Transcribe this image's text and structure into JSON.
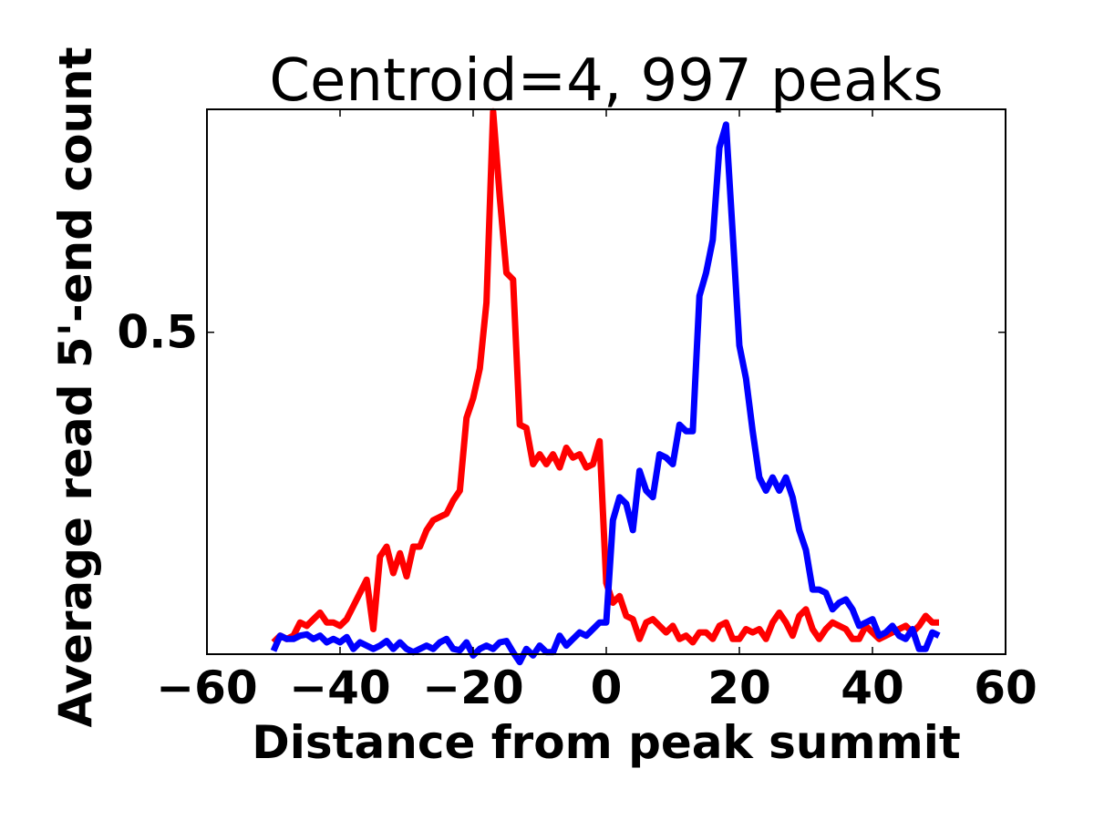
{
  "chart_data": {
    "type": "line",
    "title": "Centroid=4, 997 peaks",
    "xlabel": "Distance from peak summit",
    "ylabel": "Average read 5'-end count",
    "xlim": [
      -60,
      60
    ],
    "ylim": [
      0.012,
      0.838
    ],
    "xticks": [
      -60,
      -40,
      -20,
      0,
      20,
      40,
      60
    ],
    "xtick_labels": [
      "−60",
      "−40",
      "−20",
      "0",
      "20",
      "40",
      "60"
    ],
    "yticks": [
      0.5
    ],
    "ytick_labels": [
      "0.5"
    ],
    "x": [
      -50,
      -49,
      -48,
      -47,
      -46,
      -45,
      -44,
      -43,
      -42,
      -41,
      -40,
      -39,
      -38,
      -37,
      -36,
      -35,
      -34,
      -33,
      -32,
      -31,
      -30,
      -29,
      -28,
      -27,
      -26,
      -25,
      -24,
      -23,
      -22,
      -21,
      -20,
      -19,
      -18,
      -17,
      -16,
      -15,
      -14,
      -13,
      -12,
      -11,
      -10,
      -9,
      -8,
      -7,
      -6,
      -5,
      -4,
      -3,
      -2,
      -1,
      0,
      1,
      2,
      3,
      4,
      5,
      6,
      7,
      8,
      9,
      10,
      11,
      12,
      13,
      14,
      15,
      16,
      17,
      18,
      19,
      20,
      21,
      22,
      23,
      24,
      25,
      26,
      27,
      28,
      29,
      30,
      31,
      32,
      33,
      34,
      35,
      36,
      37,
      38,
      39,
      40,
      41,
      42,
      43,
      44,
      45,
      46,
      47,
      48,
      49,
      50
    ],
    "series": [
      {
        "name": "red",
        "color": "#ff0000",
        "values": [
          0.03,
          0.04,
          0.035,
          0.04,
          0.06,
          0.055,
          0.065,
          0.075,
          0.06,
          0.06,
          0.055,
          0.065,
          0.085,
          0.105,
          0.125,
          0.05,
          0.16,
          0.175,
          0.135,
          0.165,
          0.13,
          0.175,
          0.175,
          0.2,
          0.215,
          0.22,
          0.225,
          0.245,
          0.26,
          0.37,
          0.4,
          0.445,
          0.545,
          0.835,
          0.705,
          0.59,
          0.58,
          0.36,
          0.355,
          0.3,
          0.315,
          0.3,
          0.315,
          0.295,
          0.325,
          0.31,
          0.315,
          0.295,
          0.3,
          0.335,
          0.12,
          0.09,
          0.1,
          0.07,
          0.065,
          0.035,
          0.06,
          0.065,
          0.055,
          0.045,
          0.055,
          0.035,
          0.04,
          0.03,
          0.045,
          0.045,
          0.035,
          0.055,
          0.06,
          0.035,
          0.035,
          0.05,
          0.045,
          0.05,
          0.035,
          0.06,
          0.075,
          0.06,
          0.04,
          0.07,
          0.08,
          0.05,
          0.035,
          0.05,
          0.06,
          0.055,
          0.05,
          0.035,
          0.035,
          0.055,
          0.045,
          0.035,
          0.04,
          0.045,
          0.05,
          0.055,
          0.045,
          0.055,
          0.07,
          0.06,
          0.06
        ]
      },
      {
        "name": "blue",
        "color": "#0000ff",
        "values": [
          0.017,
          0.04,
          0.035,
          0.035,
          0.04,
          0.042,
          0.035,
          0.04,
          0.03,
          0.035,
          0.03,
          0.038,
          0.02,
          0.03,
          0.025,
          0.02,
          0.025,
          0.032,
          0.02,
          0.03,
          0.02,
          0.015,
          0.02,
          0.025,
          0.02,
          0.03,
          0.035,
          0.02,
          0.018,
          0.03,
          0.01,
          0.02,
          0.025,
          0.02,
          0.03,
          0.032,
          0.015,
          0.0,
          0.02,
          0.01,
          0.025,
          0.015,
          0.015,
          0.04,
          0.025,
          0.035,
          0.045,
          0.04,
          0.05,
          0.06,
          0.06,
          0.215,
          0.25,
          0.24,
          0.2,
          0.29,
          0.26,
          0.25,
          0.315,
          0.31,
          0.3,
          0.36,
          0.35,
          0.35,
          0.555,
          0.59,
          0.64,
          0.78,
          0.815,
          0.65,
          0.48,
          0.43,
          0.35,
          0.28,
          0.26,
          0.28,
          0.26,
          0.28,
          0.25,
          0.2,
          0.17,
          0.11,
          0.11,
          0.105,
          0.08,
          0.09,
          0.095,
          0.08,
          0.055,
          0.06,
          0.065,
          0.04,
          0.045,
          0.055,
          0.04,
          0.035,
          0.05,
          0.02,
          0.02,
          0.045,
          0.04
        ]
      }
    ]
  }
}
